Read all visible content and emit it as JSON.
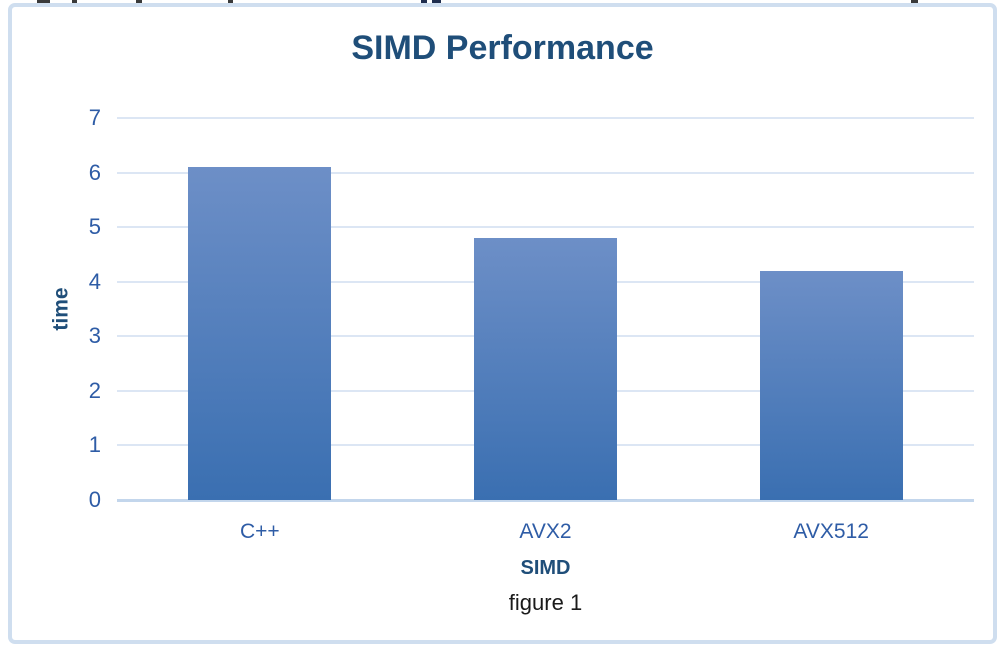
{
  "chart_data": {
    "type": "bar",
    "title": "SIMD Performance",
    "xlabel": "SIMD",
    "ylabel": "time",
    "caption": "figure 1",
    "categories": [
      "C++",
      "AVX2",
      "AVX512"
    ],
    "values": [
      6.1,
      4.8,
      4.2
    ],
    "ylim": [
      0,
      7
    ],
    "yticks": [
      0,
      1,
      2,
      3,
      4,
      5,
      6,
      7
    ],
    "grid": true,
    "legend": false,
    "bar_width_ratio": 0.5
  },
  "colors": {
    "bar_gradient_top": "#6d8fc7",
    "bar_gradient_bottom": "#3a6fb1",
    "title_text": "#1f4e79",
    "axis_label_text": "#1f4e79",
    "tick_label_text": "#2e5ca6",
    "gridline": "#dce6f4",
    "axis_line": "#c3d6ec",
    "chart_border": "#cfdeef",
    "caption_text": "#1a1a1a"
  }
}
